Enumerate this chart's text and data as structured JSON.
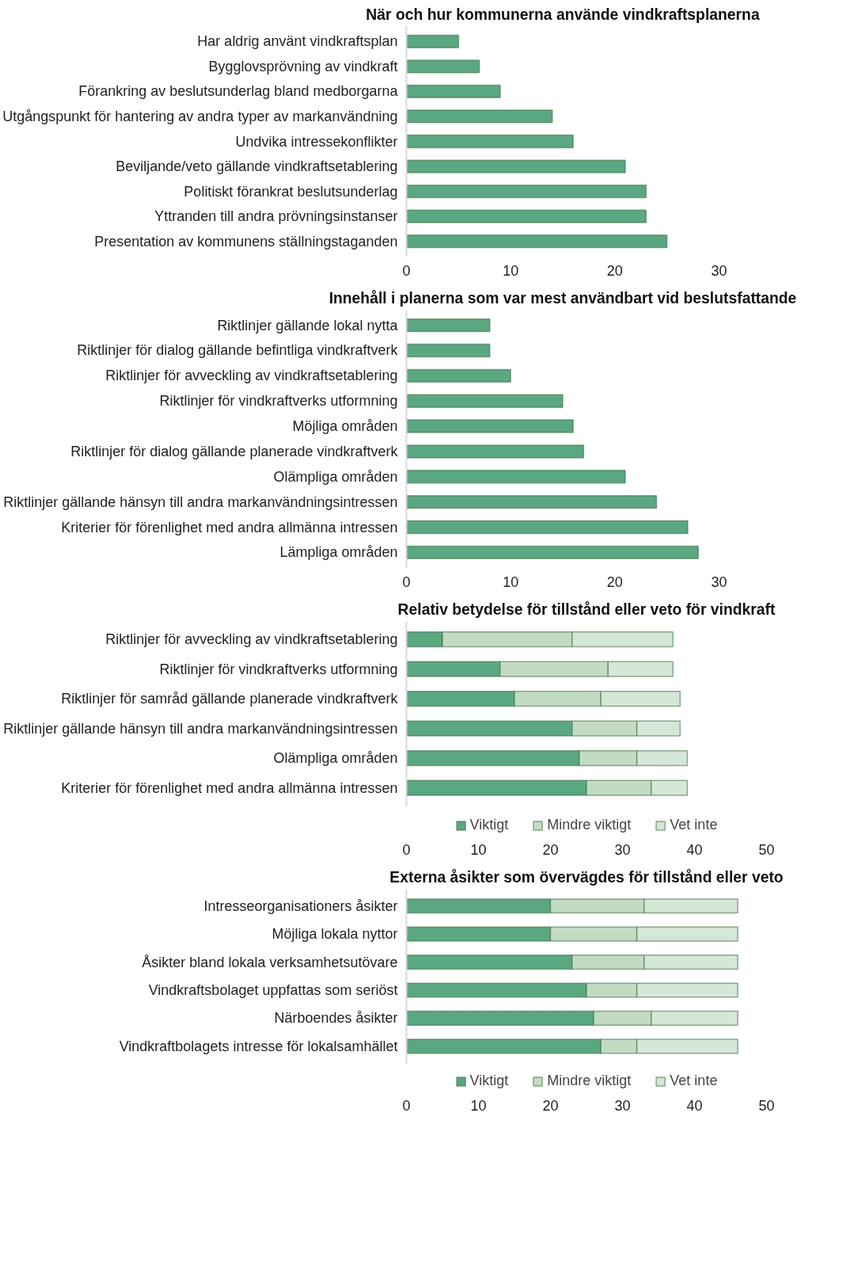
{
  "chart_data": [
    {
      "type": "bar",
      "orientation": "horizontal",
      "title": "När och hur kommunerna använde vindkraftsplanerna",
      "categories": [
        "Har aldrig använt vindkraftsplan",
        "Bygglovsprövning av vindkraft",
        "Förankring av beslutsunderlag bland medborgarna",
        "Utgångspunkt för hantering av andra typer av markanvändning",
        "Undvika intressekonflikter",
        "Beviljande/veto gällande vindkraftsetablering",
        "Politiskt förankrat beslutsunderlag",
        "Yttranden till andra prövningsinstanser",
        "Presentation av kommunens ställningstaganden"
      ],
      "values": [
        5,
        7,
        9,
        14,
        16,
        21,
        23,
        23,
        25
      ],
      "color": "#59a882",
      "xlim": [
        0,
        30
      ],
      "xticks": [
        0,
        10,
        20,
        30
      ],
      "grid": false
    },
    {
      "type": "bar",
      "orientation": "horizontal",
      "title": "Innehåll i planerna som var mest användbart vid beslutsfattande",
      "categories": [
        "Riktlinjer gällande lokal nytta",
        "Riktlinjer för dialog gällande befintliga vindkraftverk",
        "Riktlinjer för avveckling av vindkraftsetablering",
        "Riktlinjer för vindkraftverks utformning",
        "Möjliga områden",
        "Riktlinjer för dialog gällande planerade vindkraftverk",
        "Olämpliga områden",
        "Riktlinjer gällande hänsyn till andra markanvändningsintressen",
        "Kriterier för förenlighet med andra allmänna intressen",
        "Lämpliga områden"
      ],
      "values": [
        8,
        8,
        10,
        15,
        16,
        17,
        21,
        24,
        27,
        28
      ],
      "color": "#59a882",
      "xlim": [
        0,
        30
      ],
      "xticks": [
        0,
        10,
        20,
        30
      ],
      "grid": false
    },
    {
      "type": "bar",
      "orientation": "horizontal",
      "stacked": true,
      "title": "Relativ betydelse för tillstånd eller veto för vindkraft",
      "categories": [
        "Riktlinjer för avveckling av vindkraftsetablering",
        "Riktlinjer för vindkraftverks utformning",
        "Riktlinjer för samråd gällande planerade vindkraftverk",
        "Riktlinjer gällande hänsyn till andra markanvändningsintressen",
        "Olämpliga områden",
        "Kriterier för förenlighet med andra allmänna intressen"
      ],
      "series": [
        {
          "name": "Viktigt",
          "color": "#59a882",
          "values": [
            5,
            13,
            15,
            23,
            24,
            25
          ]
        },
        {
          "name": "Mindre viktigt",
          "color": "#c2dcc3",
          "values": [
            18,
            15,
            12,
            9,
            8,
            9
          ]
        },
        {
          "name": "Vet inte",
          "color": "#d5e7d7",
          "values": [
            14,
            9,
            11,
            6,
            7,
            5
          ]
        }
      ],
      "xlim": [
        0,
        50
      ],
      "xticks": [
        0,
        10,
        20,
        30,
        40,
        50
      ],
      "grid": false,
      "legend": "bottom"
    },
    {
      "type": "bar",
      "orientation": "horizontal",
      "stacked": true,
      "title": "Externa åsikter som övervägdes för tillstånd eller veto",
      "categories": [
        "Intresseorganisationers åsikter",
        "Möjliga lokala nyttor",
        "Åsikter bland lokala verksamhetsutövare",
        "Vindkraftsbolaget uppfattas som seriöst",
        "Närboendes åsikter",
        "Vindkraftbolagets intresse för lokalsamhället"
      ],
      "series": [
        {
          "name": "Viktigt",
          "color": "#59a882",
          "values": [
            20,
            20,
            23,
            25,
            26,
            27
          ]
        },
        {
          "name": "Mindre viktigt",
          "color": "#c2dcc3",
          "values": [
            13,
            12,
            10,
            7,
            8,
            5
          ]
        },
        {
          "name": "Vet inte",
          "color": "#d5e7d7",
          "values": [
            13,
            14,
            13,
            14,
            12,
            14
          ]
        }
      ],
      "xlim": [
        0,
        50
      ],
      "xticks": [
        0,
        10,
        20,
        30,
        40,
        50
      ],
      "grid": false,
      "legend": "bottom"
    }
  ]
}
